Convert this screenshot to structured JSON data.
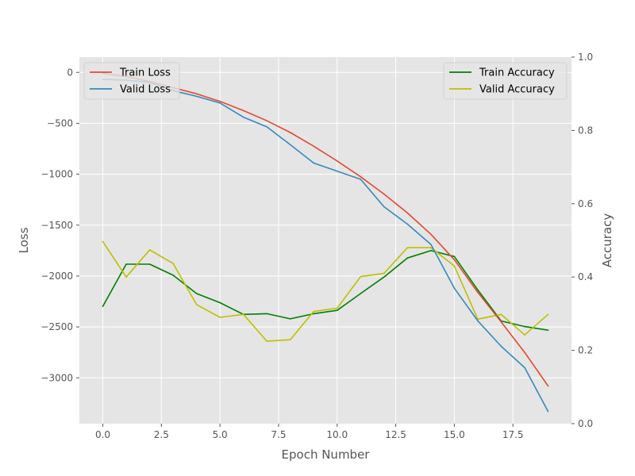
{
  "chart_data": {
    "type": "line",
    "xlabel": "Epoch Number",
    "ylabel_left": "Loss",
    "ylabel_right": "Accuracy",
    "x": [
      0,
      1,
      2,
      3,
      4,
      5,
      6,
      7,
      8,
      9,
      10,
      11,
      12,
      13,
      14,
      15,
      16,
      17,
      18,
      19
    ],
    "xlim": [
      -1,
      20
    ],
    "x_ticks": [
      0,
      2.5,
      5,
      7.5,
      10,
      12.5,
      15,
      17.5
    ],
    "x_tick_labels": [
      "0.0",
      "2.5",
      "5.0",
      "7.5",
      "10.0",
      "12.5",
      "15.0",
      "17.5"
    ],
    "ylim_left": [
      -3450,
      150
    ],
    "y_ticks_left": [
      0,
      -500,
      -1000,
      -1500,
      -2000,
      -2500,
      -3000
    ],
    "y_tick_labels_left": [
      "0",
      "−500",
      "−1000",
      "−1500",
      "−2000",
      "−2500",
      "−3000"
    ],
    "ylim_right": [
      0,
      1
    ],
    "y_ticks_right": [
      0,
      0.2,
      0.4,
      0.6,
      0.8,
      1.0
    ],
    "y_tick_labels_right": [
      "0.0",
      "0.2",
      "0.4",
      "0.6",
      "0.8",
      "1.0"
    ],
    "grid": true,
    "series_left": [
      {
        "name": "Train Loss",
        "color": "#e24a33",
        "values": [
          -10,
          -40,
          -90,
          -150,
          -210,
          -285,
          -375,
          -475,
          -590,
          -725,
          -870,
          -1025,
          -1195,
          -1380,
          -1590,
          -1840,
          -2160,
          -2450,
          -2750,
          -3080
        ]
      },
      {
        "name": "Valid Loss",
        "color": "#348abd",
        "values": [
          -70,
          -75,
          -100,
          -180,
          -235,
          -300,
          -440,
          -535,
          -710,
          -890,
          -970,
          -1050,
          -1320,
          -1490,
          -1690,
          -2120,
          -2440,
          -2690,
          -2900,
          -3330
        ]
      }
    ],
    "series_right": [
      {
        "name": "Train Accuracy",
        "color": "#008000",
        "values": [
          0.32,
          0.435,
          0.435,
          0.405,
          0.355,
          0.33,
          0.298,
          0.3,
          0.286,
          0.3,
          0.309,
          0.355,
          0.4,
          0.452,
          0.472,
          0.456,
          0.365,
          0.28,
          0.265,
          0.255
        ]
      },
      {
        "name": "Valid Accuracy",
        "color": "#bfbf00",
        "values": [
          0.497,
          0.4,
          0.474,
          0.437,
          0.325,
          0.29,
          0.298,
          0.225,
          0.229,
          0.306,
          0.315,
          0.401,
          0.41,
          0.48,
          0.48,
          0.43,
          0.285,
          0.298,
          0.242,
          0.298
        ]
      }
    ],
    "legend_left_placement": "top-left",
    "legend_right_placement": "top-right"
  }
}
